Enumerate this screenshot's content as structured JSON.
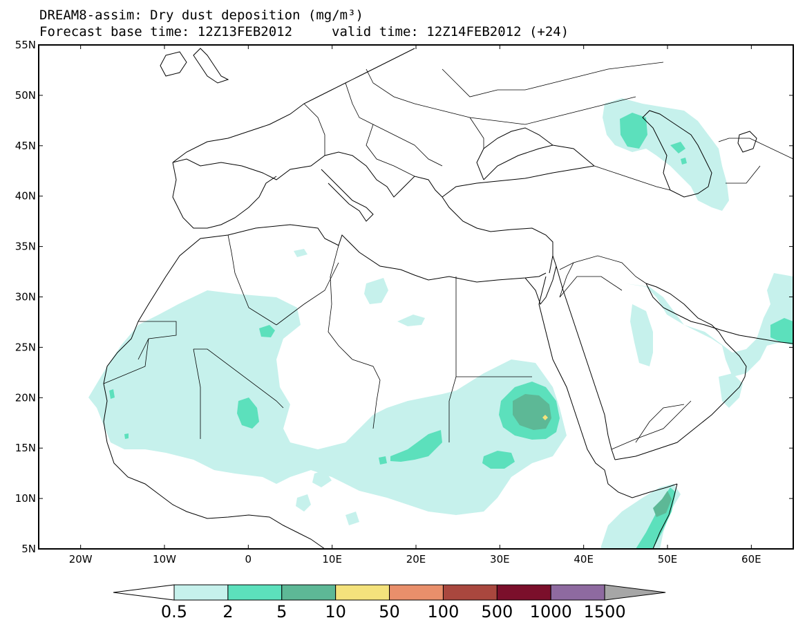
{
  "title": {
    "line1": "DREAM8-assim: Dry dust deposition (mg/m³)",
    "line2a": "Forecast base time: 12Z13FEB2012",
    "line2b": "valid time: 12Z14FEB2012 (+24)"
  },
  "axes": {
    "lat_labels": [
      "55N",
      "50N",
      "45N",
      "40N",
      "35N",
      "30N",
      "25N",
      "20N",
      "15N",
      "10N",
      "5N"
    ],
    "lat_values": [
      55,
      50,
      45,
      40,
      35,
      30,
      25,
      20,
      15,
      10,
      5
    ],
    "lon_labels": [
      "20W",
      "10W",
      "0",
      "10E",
      "20E",
      "30E",
      "40E",
      "50E",
      "60E"
    ],
    "lon_values": [
      -20,
      -10,
      0,
      10,
      20,
      30,
      40,
      50,
      60
    ],
    "lon_range": [
      -25,
      65
    ],
    "lat_range": [
      5,
      55
    ]
  },
  "colorbar": {
    "labels": [
      "0.5",
      "2",
      "5",
      "10",
      "50",
      "100",
      "500",
      "1000",
      "1500"
    ],
    "colors": [
      "#c6f1ec",
      "#5ce0bc",
      "#5db896",
      "#f4e27c",
      "#e98f6b",
      "#a9473e",
      "#7b0f2b",
      "#8e6aa0",
      "#a6a6a6"
    ]
  },
  "colors": {
    "level1": "#c6f1ec",
    "level2": "#5ce0bc",
    "level3": "#5db896",
    "level4": "#f4e27c",
    "coast": "#000000"
  }
}
